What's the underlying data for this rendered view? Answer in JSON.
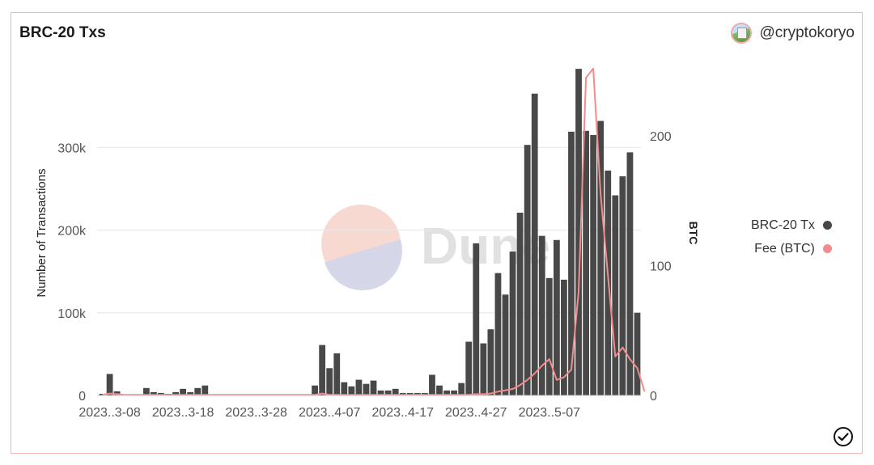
{
  "header": {
    "title": "BRC-20 Txs",
    "author": "@cryptokoryo"
  },
  "watermark": {
    "text": "Dune"
  },
  "colors": {
    "bar": "#484848",
    "line": "#f28b8b",
    "grid": "#e6e6e6",
    "axis_text": "#555555"
  },
  "chart_data": {
    "type": "bar",
    "title": "BRC-20 Txs",
    "xlabel": "",
    "ylabel": "Number of Transactions",
    "y2label": "BTC",
    "ylim": [
      0,
      400000
    ],
    "y2lim": [
      0,
      255
    ],
    "yticks": [
      0,
      100000,
      200000,
      300000
    ],
    "ytick_labels": [
      "0",
      "100k",
      "200k",
      "300k"
    ],
    "y2ticks": [
      0,
      100,
      200
    ],
    "y2tick_labels": [
      "0",
      "100",
      "200"
    ],
    "xtick_labels": [
      "2023..3-08",
      "2023..3-18",
      "2023..3-28",
      "2023..4-07",
      "2023..4-17",
      "2023..4-27",
      "2023..5-07"
    ],
    "xtick_index": [
      1,
      11,
      21,
      31,
      41,
      51,
      61
    ],
    "grid": true,
    "legend_position": "right",
    "series": [
      {
        "name": "BRC-20 Tx",
        "kind": "bar",
        "axis": "left",
        "values": [
          2000,
          26000,
          5000,
          1000,
          1000,
          1000,
          9000,
          4000,
          3000,
          2000,
          4000,
          8000,
          4000,
          9000,
          12000,
          0,
          0,
          0,
          0,
          0,
          0,
          0,
          0,
          0,
          0,
          0,
          0,
          0,
          0,
          12000,
          61000,
          33000,
          51000,
          16000,
          11000,
          19000,
          14000,
          18000,
          6000,
          6000,
          8000,
          3000,
          3000,
          3000,
          3000,
          25000,
          12000,
          6000,
          6000,
          15000,
          65000,
          184000,
          63000,
          80000,
          148000,
          122000,
          174000,
          221000,
          303000,
          365000,
          193000,
          142000,
          188000,
          140000,
          319000,
          395000,
          320000,
          315000,
          332000,
          272000,
          242000,
          265000,
          294000,
          100000
        ]
      },
      {
        "name": "Fee (BTC)",
        "kind": "line",
        "axis": "right",
        "values": [
          0.5,
          1.5,
          1,
          0.5,
          0.5,
          0.5,
          0.5,
          0.5,
          0.5,
          0.5,
          0.5,
          0.5,
          0.5,
          0.5,
          0.5,
          0.5,
          0.5,
          0.5,
          0.5,
          0.5,
          0.5,
          0.5,
          0.5,
          0.5,
          0.5,
          0.5,
          0.5,
          0.5,
          0.5,
          0.5,
          1.5,
          0.5,
          0.5,
          0.5,
          0.5,
          0.5,
          0.5,
          0.5,
          0.5,
          0.5,
          0.5,
          0.5,
          0.5,
          0.5,
          0.5,
          0.5,
          0.5,
          0.5,
          0.5,
          0.5,
          0.5,
          1,
          1,
          1.5,
          3,
          4,
          5,
          8,
          12,
          17,
          23,
          28,
          12,
          14,
          20,
          80,
          245,
          252,
          155,
          92,
          30,
          37,
          28,
          21,
          3
        ]
      }
    ]
  }
}
